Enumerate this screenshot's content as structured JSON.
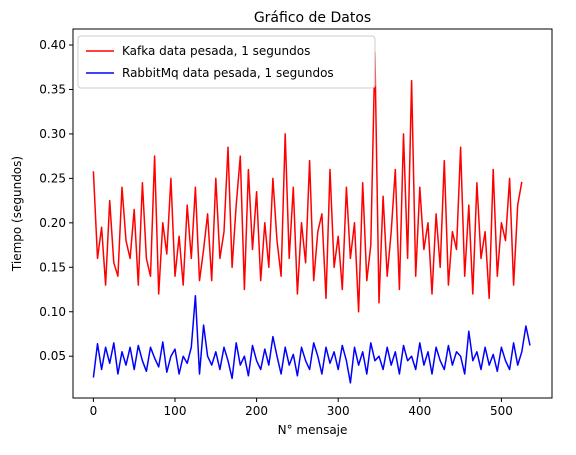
{
  "chart_data": {
    "type": "line",
    "title": "Gráfico de Datos",
    "xlabel": "N° mensaje",
    "ylabel": "Tiempo (segundos)",
    "xlim": [
      -25,
      562
    ],
    "ylim": [
      0.003,
      0.418
    ],
    "x_ticks": [
      0,
      100,
      200,
      300,
      400,
      500
    ],
    "y_ticks": [
      0.05,
      0.1,
      0.15,
      0.2,
      0.25,
      0.3,
      0.35,
      0.4
    ],
    "y_tick_labels": [
      "0.05",
      "0.10",
      "0.15",
      "0.20",
      "0.25",
      "0.30",
      "0.35",
      "0.40"
    ],
    "grid": false,
    "legend_position": "top-left",
    "series": [
      {
        "name": "Kafka data pesada, 1 segundos",
        "color": "#ff0000",
        "x": [
          0,
          5,
          10,
          15,
          20,
          25,
          30,
          35,
          40,
          45,
          50,
          55,
          60,
          65,
          70,
          75,
          80,
          85,
          90,
          95,
          100,
          105,
          110,
          115,
          120,
          125,
          130,
          135,
          140,
          145,
          150,
          155,
          160,
          165,
          170,
          175,
          180,
          185,
          190,
          195,
          200,
          205,
          210,
          215,
          220,
          225,
          230,
          235,
          240,
          245,
          250,
          255,
          260,
          265,
          270,
          275,
          280,
          285,
          290,
          295,
          300,
          305,
          310,
          315,
          320,
          325,
          330,
          335,
          340,
          345,
          350,
          355,
          360,
          365,
          370,
          375,
          380,
          385,
          390,
          395,
          400,
          405,
          410,
          415,
          420,
          425,
          430,
          435,
          440,
          445,
          450,
          455,
          460,
          465,
          470,
          475,
          480,
          485,
          490,
          495,
          500,
          505,
          510,
          515,
          520,
          525
        ],
        "y": [
          0.258,
          0.16,
          0.195,
          0.13,
          0.225,
          0.155,
          0.14,
          0.24,
          0.18,
          0.16,
          0.215,
          0.13,
          0.245,
          0.16,
          0.14,
          0.275,
          0.12,
          0.2,
          0.165,
          0.25,
          0.14,
          0.185,
          0.13,
          0.22,
          0.16,
          0.24,
          0.135,
          0.17,
          0.21,
          0.135,
          0.25,
          0.16,
          0.19,
          0.285,
          0.15,
          0.22,
          0.275,
          0.125,
          0.26,
          0.17,
          0.235,
          0.135,
          0.2,
          0.15,
          0.25,
          0.18,
          0.14,
          0.3,
          0.16,
          0.24,
          0.12,
          0.2,
          0.155,
          0.27,
          0.135,
          0.19,
          0.21,
          0.115,
          0.26,
          0.15,
          0.185,
          0.125,
          0.24,
          0.16,
          0.2,
          0.1,
          0.245,
          0.135,
          0.175,
          0.392,
          0.11,
          0.23,
          0.14,
          0.19,
          0.26,
          0.125,
          0.3,
          0.16,
          0.36,
          0.14,
          0.24,
          0.17,
          0.2,
          0.12,
          0.21,
          0.15,
          0.27,
          0.13,
          0.19,
          0.17,
          0.285,
          0.14,
          0.22,
          0.12,
          0.245,
          0.16,
          0.19,
          0.115,
          0.26,
          0.14,
          0.2,
          0.18,
          0.25,
          0.13,
          0.22,
          0.246
        ]
      },
      {
        "name": "RabbitMq data pesada, 1 segundos",
        "color": "#0000ff",
        "x": [
          0,
          5,
          10,
          15,
          20,
          25,
          30,
          35,
          40,
          45,
          50,
          55,
          60,
          65,
          70,
          75,
          80,
          85,
          90,
          95,
          100,
          105,
          110,
          115,
          120,
          125,
          130,
          135,
          140,
          145,
          150,
          155,
          160,
          165,
          170,
          175,
          180,
          185,
          190,
          195,
          200,
          205,
          210,
          215,
          220,
          225,
          230,
          235,
          240,
          245,
          250,
          255,
          260,
          265,
          270,
          275,
          280,
          285,
          290,
          295,
          300,
          305,
          310,
          315,
          320,
          325,
          330,
          335,
          340,
          345,
          350,
          355,
          360,
          365,
          370,
          375,
          380,
          385,
          390,
          395,
          400,
          405,
          410,
          415,
          420,
          425,
          430,
          435,
          440,
          445,
          450,
          455,
          460,
          465,
          470,
          475,
          480,
          485,
          490,
          495,
          500,
          505,
          510,
          515,
          520,
          525,
          530,
          535
        ],
        "y": [
          0.026,
          0.064,
          0.035,
          0.06,
          0.042,
          0.065,
          0.03,
          0.055,
          0.04,
          0.06,
          0.035,
          0.062,
          0.045,
          0.033,
          0.06,
          0.048,
          0.038,
          0.066,
          0.032,
          0.05,
          0.058,
          0.03,
          0.05,
          0.042,
          0.06,
          0.118,
          0.03,
          0.085,
          0.05,
          0.04,
          0.055,
          0.035,
          0.06,
          0.045,
          0.025,
          0.065,
          0.04,
          0.05,
          0.028,
          0.062,
          0.045,
          0.035,
          0.058,
          0.04,
          0.072,
          0.05,
          0.03,
          0.06,
          0.04,
          0.052,
          0.028,
          0.06,
          0.045,
          0.035,
          0.065,
          0.05,
          0.03,
          0.06,
          0.042,
          0.055,
          0.035,
          0.062,
          0.045,
          0.02,
          0.06,
          0.04,
          0.055,
          0.03,
          0.065,
          0.045,
          0.05,
          0.035,
          0.06,
          0.04,
          0.055,
          0.03,
          0.062,
          0.045,
          0.05,
          0.035,
          0.065,
          0.04,
          0.055,
          0.03,
          0.06,
          0.045,
          0.035,
          0.062,
          0.04,
          0.055,
          0.05,
          0.03,
          0.078,
          0.045,
          0.055,
          0.035,
          0.06,
          0.04,
          0.052,
          0.033,
          0.06,
          0.045,
          0.035,
          0.065,
          0.04,
          0.055,
          0.084,
          0.062
        ]
      }
    ]
  }
}
